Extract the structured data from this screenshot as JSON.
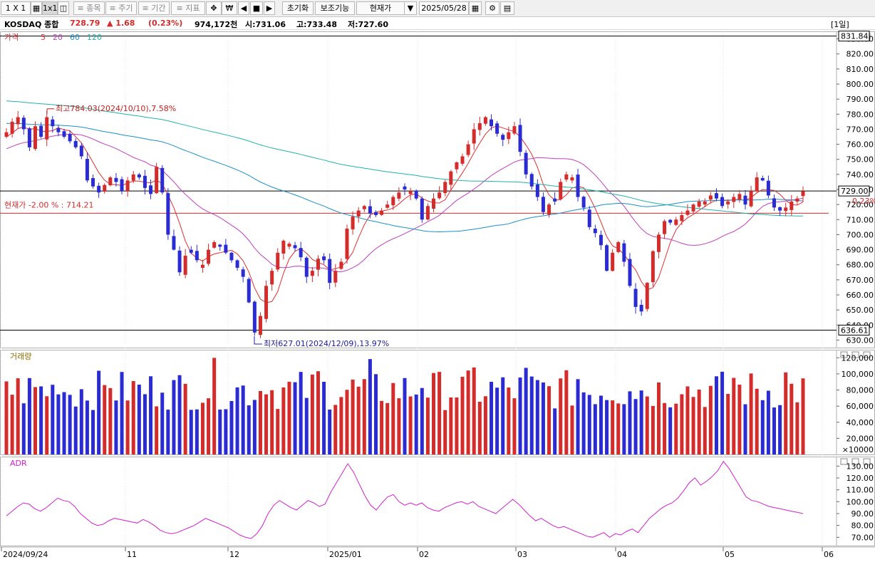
{
  "toolbar": {
    "layout": "1 X 1",
    "layout_active": "1x1",
    "item": "≡ 종목",
    "period": "≡ 주기",
    "range": "≡ 기간",
    "indicator": "≡ 지표",
    "reset": "초기화",
    "aux": "보조기능",
    "price_type": "현재가",
    "date": "2025/05/28"
  },
  "info": {
    "name": "KOSDAQ 종합",
    "price": "728.79",
    "change": "▲ 1.68",
    "change_pct": "(0.23%)",
    "volume": "974,172천",
    "open": "시:731.06",
    "high": "고:733.48",
    "low": "저:727.60",
    "period": "[1일]"
  },
  "colors": {
    "up": "#d42b2b",
    "down": "#2b2bd4",
    "ma5": "#e03030",
    "ma20": "#c040c0",
    "ma60": "#1a90c8",
    "ma120": "#20b2a8",
    "adr": "#d020d0"
  },
  "chart_data": [
    {
      "type": "candlestick",
      "legend": [
        "가격",
        "5",
        "20",
        "60",
        "120"
      ],
      "ylim": [
        625,
        835
      ],
      "yticks": [
        630,
        640,
        650,
        660,
        670,
        680,
        690,
        700,
        710,
        720,
        730,
        740,
        750,
        760,
        770,
        780,
        790,
        800,
        810,
        820,
        830
      ],
      "x_labels": [
        "2024/09/24",
        "11",
        "12",
        "2025/01",
        "02",
        "03",
        "04",
        "05",
        "06"
      ],
      "hlines": [
        {
          "value": 831.84,
          "label": "831.84"
        },
        {
          "value": 636.61,
          "label": "636.61"
        },
        {
          "value": 729.0,
          "label": "729.00"
        }
      ],
      "ref_line": {
        "value": 714.21,
        "label": "현재가 -2.00 % : 714.21"
      },
      "current_pct": "0.23%",
      "annotations": [
        {
          "text": "최고784.03(2024/10/10),7.58%",
          "value": 784.03
        },
        {
          "text": "최저627.01(2024/12/09),13.97%",
          "value": 627.01
        }
      ],
      "closes": [
        768,
        775,
        778,
        770,
        758,
        772,
        765,
        778,
        772,
        768,
        765,
        762,
        758,
        752,
        736,
        732,
        728,
        733,
        738,
        735,
        729,
        736,
        740,
        738,
        731,
        727,
        745,
        728,
        700,
        690,
        675,
        686,
        688,
        683,
        680,
        690,
        695,
        692,
        688,
        683,
        678,
        672,
        655,
        635,
        646,
        666,
        676,
        688,
        696,
        694,
        691,
        685,
        672,
        676,
        684,
        683,
        668,
        676,
        682,
        704,
        712,
        716,
        719,
        714,
        713,
        716,
        720,
        725,
        728,
        730,
        729,
        724,
        710,
        719,
        724,
        728,
        735,
        742,
        748,
        752,
        760,
        770,
        774,
        778,
        772,
        767,
        763,
        768,
        772,
        755,
        740,
        732,
        725,
        715,
        720,
        722,
        735,
        740,
        738,
        725,
        718,
        705,
        701,
        693,
        676,
        688,
        695,
        682,
        666,
        652,
        649,
        668,
        689,
        700,
        709,
        708,
        710,
        713,
        716,
        720,
        722,
        722,
        726,
        724,
        719,
        722,
        725,
        727,
        720,
        729,
        738,
        736,
        726,
        718,
        716,
        718,
        722,
        724,
        728.79
      ],
      "volume": {
        "ylim": [
          0,
          130000
        ],
        "yticks": [
          20000,
          40000,
          60000,
          80000,
          100000,
          120000
        ],
        "unit": "×10000",
        "legend": "거래량"
      },
      "adr": {
        "ylim": [
          63,
          138
        ],
        "yticks": [
          70,
          80,
          90,
          100,
          110,
          120,
          130
        ],
        "legend": "ADR",
        "values": [
          88,
          92,
          96,
          99,
          98,
          94,
          92,
          95,
          99,
          103,
          101,
          100,
          96,
          90,
          86,
          82,
          80,
          81,
          84,
          86,
          85,
          84,
          83,
          82,
          85,
          83,
          80,
          76,
          74,
          73,
          74,
          76,
          78,
          80,
          83,
          86,
          84,
          82,
          80,
          78,
          75,
          72,
          70,
          69,
          73,
          80,
          90,
          97,
          101,
          98,
          95,
          93,
          97,
          101,
          99,
          96,
          98,
          108,
          116,
          124,
          132,
          125,
          115,
          105,
          97,
          93,
          99,
          104,
          106,
          100,
          97,
          99,
          97,
          99,
          95,
          93,
          92,
          95,
          97,
          99,
          100,
          98,
          100,
          96,
          94,
          92,
          90,
          94,
          98,
          102,
          98,
          93,
          88,
          84,
          86,
          83,
          80,
          78,
          79,
          77,
          75,
          73,
          71,
          70,
          72,
          74,
          70,
          73,
          72,
          75,
          77,
          74,
          80,
          86,
          90,
          94,
          97,
          99,
          103,
          109,
          116,
          120,
          114,
          117,
          121,
          126,
          134,
          128,
          120,
          112,
          104,
          101,
          100,
          98,
          96,
          95,
          94,
          93,
          92,
          91,
          90
        ]
      }
    }
  ]
}
